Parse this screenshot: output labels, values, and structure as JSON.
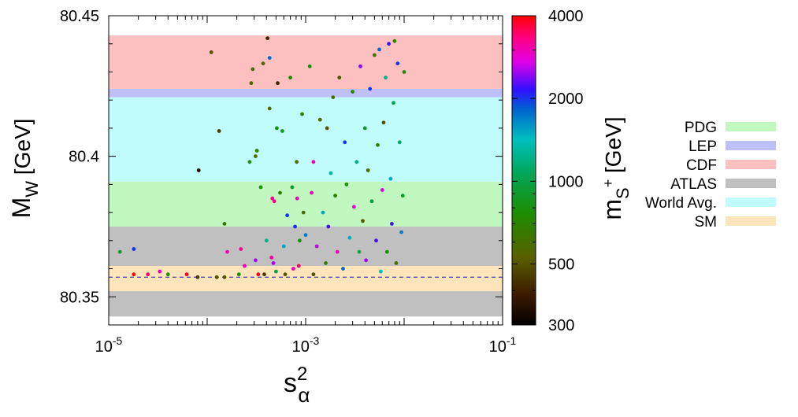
{
  "chart_data": {
    "type": "scatter",
    "xlabel": {
      "base": "s",
      "sup": "2",
      "sub": "α"
    },
    "ylabel": {
      "base": "M",
      "sub": "W",
      "unit": " [GeV]"
    },
    "xscale": "log",
    "xlim": [
      1e-05,
      0.1
    ],
    "ylim": [
      80.34,
      80.45
    ],
    "x_ticks": [
      {
        "base": "10",
        "exp": "-5"
      },
      {
        "base": "10",
        "exp": "-3"
      },
      {
        "base": "10",
        "exp": "-1"
      }
    ],
    "x_tick_values": [
      1e-05,
      0.001,
      0.1
    ],
    "y_ticks": [
      "80.35",
      "80.4",
      "80.45"
    ],
    "y_tick_values": [
      80.35,
      80.4,
      80.45
    ],
    "bands": [
      {
        "name": "ATLAS",
        "y0": 80.343,
        "y1": 80.375,
        "color": "#c0c0c0"
      },
      {
        "name": "SM",
        "y0": 80.352,
        "y1": 80.361,
        "color": "#fde4bb"
      },
      {
        "name": "PDG",
        "y0": 80.375,
        "y1": 80.391,
        "color": "#c0f8c0"
      },
      {
        "name": "World Avg.",
        "y0": 80.391,
        "y1": 80.421,
        "color": "#c0fcfc"
      },
      {
        "name": "LEP",
        "y0": 80.421,
        "y1": 80.424,
        "color": "#c0c0f8"
      },
      {
        "name": "CDF",
        "y0": 80.424,
        "y1": 80.443,
        "color": "#fcc0c0"
      }
    ],
    "sm_line": 80.357,
    "legend": [
      "PDG",
      "LEP",
      "CDF",
      "ATLAS",
      "World Avg.",
      "SM"
    ],
    "legend_placement": "right",
    "colorbar": {
      "label": {
        "base": "m",
        "sub": "S",
        "sup": "+",
        "unit": " [GeV]"
      },
      "scale": "log",
      "range": [
        300,
        4000
      ],
      "ticks": [
        "4000",
        "2000",
        "1000",
        "500",
        "300"
      ],
      "tick_values": [
        4000,
        2000,
        1000,
        500,
        300
      ]
    },
    "points": [
      [
        1.3e-05,
        80.366,
        900
      ],
      [
        1.8e-05,
        80.367,
        2000
      ],
      [
        1.8e-05,
        80.358,
        4000
      ],
      [
        2.5e-05,
        80.358,
        3500
      ],
      [
        3.3e-05,
        80.359,
        3000
      ],
      [
        4e-05,
        80.358,
        800
      ],
      [
        6.2e-05,
        80.358,
        3800
      ],
      [
        8e-05,
        80.357,
        450
      ],
      [
        8.2e-05,
        80.395,
        350
      ],
      [
        0.00011,
        80.437,
        500
      ],
      [
        0.000125,
        80.357,
        500
      ],
      [
        0.000132,
        80.409,
        450
      ],
      [
        0.00015,
        80.357,
        500
      ],
      [
        0.00016,
        80.366,
        3000
      ],
      [
        0.00015,
        80.376,
        650
      ],
      [
        0.00021,
        80.358,
        800
      ],
      [
        0.00022,
        80.367,
        3200
      ],
      [
        0.00024,
        80.361,
        3000
      ],
      [
        0.00027,
        80.398,
        800
      ],
      [
        0.00028,
        80.426,
        550
      ],
      [
        0.00029,
        80.431,
        600
      ],
      [
        0.00031,
        80.363,
        2500
      ],
      [
        0.00031,
        80.4,
        600
      ],
      [
        0.00032,
        80.402,
        700
      ],
      [
        0.00033,
        80.358,
        3800
      ],
      [
        0.00035,
        80.389,
        800
      ],
      [
        0.00037,
        80.433,
        550
      ],
      [
        0.00038,
        80.358,
        450
      ],
      [
        0.0004,
        80.37,
        1200
      ],
      [
        0.00041,
        80.442,
        400
      ],
      [
        0.00043,
        80.435,
        1800
      ],
      [
        0.00043,
        80.417,
        600
      ],
      [
        0.00045,
        80.364,
        3200
      ],
      [
        0.00046,
        80.385,
        3200
      ],
      [
        0.00047,
        80.362,
        2500
      ],
      [
        0.00048,
        80.384,
        3300
      ],
      [
        0.0005,
        80.359,
        1000
      ],
      [
        0.00051,
        80.41,
        800
      ],
      [
        0.00052,
        80.426,
        400
      ],
      [
        0.00055,
        80.387,
        700
      ],
      [
        0.00058,
        80.409,
        900
      ],
      [
        0.0006,
        80.368,
        1500
      ],
      [
        0.00062,
        80.358,
        500
      ],
      [
        0.00065,
        80.379,
        2000
      ],
      [
        0.0007,
        80.428,
        700
      ],
      [
        0.00073,
        80.389,
        900
      ],
      [
        0.00075,
        80.36,
        3000
      ],
      [
        0.00078,
        80.375,
        2000
      ],
      [
        0.00081,
        80.398,
        600
      ],
      [
        0.00082,
        80.385,
        3000
      ],
      [
        0.00085,
        80.361,
        3500
      ],
      [
        0.00087,
        80.37,
        800
      ],
      [
        0.00092,
        80.415,
        700
      ],
      [
        0.00095,
        80.38,
        600
      ],
      [
        0.001,
        80.372,
        1700
      ],
      [
        0.0011,
        80.432,
        800
      ],
      [
        0.00115,
        80.387,
        3000
      ],
      [
        0.0012,
        80.358,
        500
      ],
      [
        0.0012,
        80.398,
        3000
      ],
      [
        0.0013,
        80.368,
        2600
      ],
      [
        0.0014,
        80.413,
        600
      ],
      [
        0.0015,
        80.38,
        1500
      ],
      [
        0.0016,
        80.362,
        700
      ],
      [
        0.00165,
        80.41,
        500
      ],
      [
        0.0017,
        80.375,
        2200
      ],
      [
        0.0018,
        80.394,
        1300
      ],
      [
        0.0019,
        80.421,
        600
      ],
      [
        0.002,
        80.386,
        700
      ],
      [
        0.0021,
        80.366,
        3000
      ],
      [
        0.0022,
        80.428,
        500
      ],
      [
        0.0024,
        80.36,
        1800
      ],
      [
        0.0025,
        80.405,
        2000
      ],
      [
        0.0026,
        80.39,
        800
      ],
      [
        0.0028,
        80.371,
        1500
      ],
      [
        0.003,
        80.423,
        700
      ],
      [
        0.0031,
        80.382,
        2800
      ],
      [
        0.0033,
        80.398,
        1200
      ],
      [
        0.0035,
        80.366,
        1000
      ],
      [
        0.0036,
        80.432,
        2400
      ],
      [
        0.0038,
        80.377,
        500
      ],
      [
        0.004,
        80.41,
        900
      ],
      [
        0.0041,
        80.363,
        2500
      ],
      [
        0.0043,
        80.395,
        600
      ],
      [
        0.0045,
        80.424,
        2000
      ],
      [
        0.0047,
        80.384,
        1000
      ],
      [
        0.005,
        80.436,
        600
      ],
      [
        0.0052,
        80.37,
        2200
      ],
      [
        0.0054,
        80.404,
        700
      ],
      [
        0.0056,
        80.438,
        1800
      ],
      [
        0.0058,
        80.359,
        1400
      ],
      [
        0.006,
        80.388,
        2700
      ],
      [
        0.0062,
        80.412,
        500
      ],
      [
        0.0065,
        80.428,
        1200
      ],
      [
        0.0067,
        80.366,
        800
      ],
      [
        0.007,
        80.44,
        2200
      ],
      [
        0.0073,
        80.392,
        1500
      ],
      [
        0.0075,
        80.376,
        2200
      ],
      [
        0.0078,
        80.419,
        1000
      ],
      [
        0.008,
        80.441,
        700
      ],
      [
        0.0083,
        80.362,
        600
      ],
      [
        0.0086,
        80.433,
        2000
      ],
      [
        0.009,
        80.405,
        1100
      ],
      [
        0.0094,
        80.373,
        1700
      ],
      [
        0.0097,
        80.386,
        900
      ],
      [
        0.01,
        80.43,
        800
      ]
    ]
  }
}
